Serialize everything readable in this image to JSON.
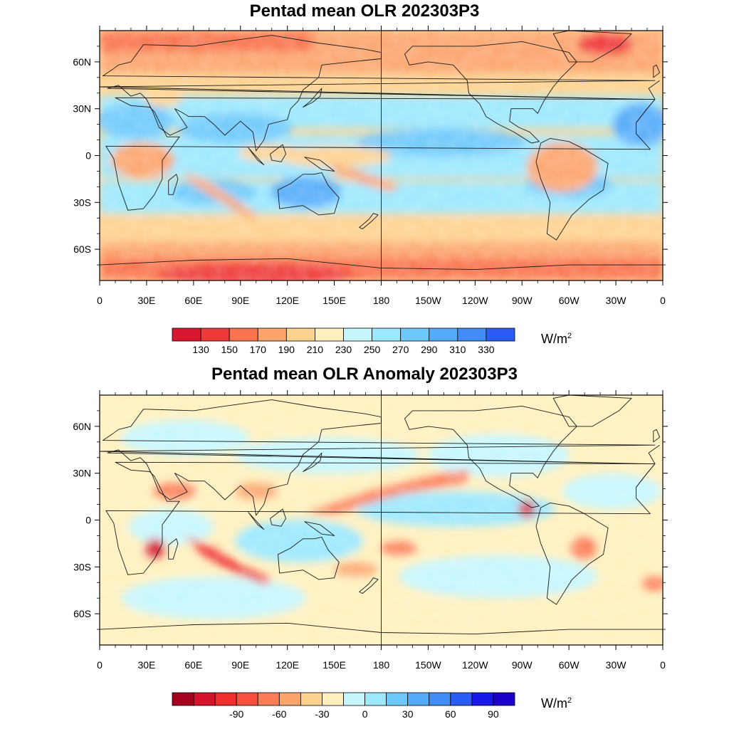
{
  "panels": [
    {
      "title": "Pentad mean OLR 202303P3",
      "unit": "W/m",
      "unit_sup": "2",
      "lat_labels": [
        "60N",
        "30N",
        "0",
        "30S",
        "60S"
      ],
      "lon_labels": [
        "0",
        "30E",
        "60E",
        "90E",
        "120E",
        "150E",
        "180",
        "150W",
        "120W",
        "90W",
        "60W",
        "30W",
        "0"
      ],
      "colorbar_labels": [
        "130",
        "150",
        "170",
        "190",
        "210",
        "230",
        "250",
        "270",
        "290",
        "310",
        "330"
      ],
      "colorbar_colors": [
        "#d7182f",
        "#ef3a3a",
        "#f9734e",
        "#fca46c",
        "#fed28f",
        "#fff0bd",
        "#c6f7ff",
        "#9be8ff",
        "#6ec9fb",
        "#54abfa",
        "#418cf6",
        "#2b5cf6"
      ]
    },
    {
      "title": "Pentad mean OLR Anomaly 202303P3",
      "unit": "W/m",
      "unit_sup": "2",
      "lat_labels": [
        "60N",
        "30N",
        "0",
        "30S",
        "60S"
      ],
      "lon_labels": [
        "0",
        "30E",
        "60E",
        "90E",
        "120E",
        "150E",
        "180",
        "150W",
        "120W",
        "90W",
        "60W",
        "30W",
        "0"
      ],
      "colorbar_labels": [
        "-90",
        "-60",
        "-30",
        "0",
        "30",
        "60",
        "90"
      ],
      "colorbar_colors": [
        "#a5001e",
        "#d4142a",
        "#ef2e2e",
        "#f94f3f",
        "#fb7c56",
        "#fca46c",
        "#fed28f",
        "#fff0bd",
        "#c6f7ff",
        "#9be8ff",
        "#6ec9fb",
        "#54abfa",
        "#418cf6",
        "#2b5cf6",
        "#1818e8",
        "#1a00c9"
      ]
    }
  ],
  "colors": {
    "red_strong": "#e8352f",
    "red": "#f9734e",
    "orange": "#fca46c",
    "tan": "#fed28f",
    "cream": "#fff0bd",
    "cyan": "#c6f7ff",
    "light_blue": "#9be8ff",
    "blue": "#6ec9fb",
    "mid_blue": "#54abfa",
    "coast": "#1a1a1a"
  }
}
